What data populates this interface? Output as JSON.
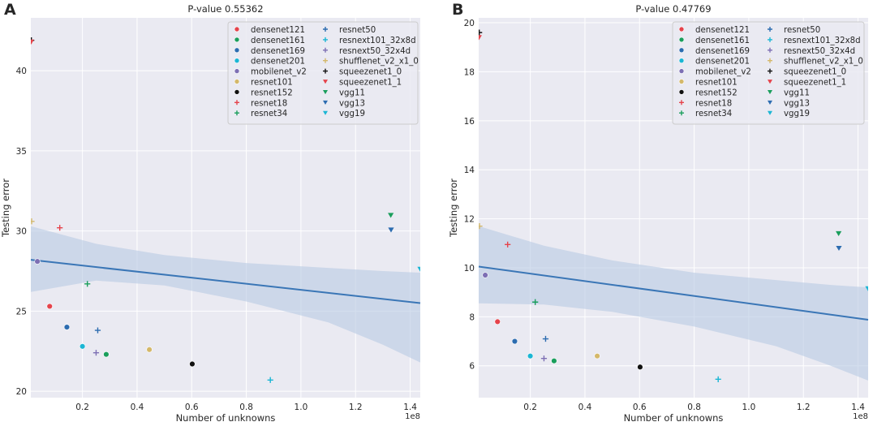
{
  "chart_data": [
    {
      "panel_label": "A",
      "type": "scatter",
      "title": "P-value  0.55362",
      "xlabel": "Number of unknowns",
      "ylabel": "Testing error",
      "x_scale_label": "1e8",
      "xlim": [
        0.011,
        1.437
      ],
      "ylim": [
        19.6,
        43.3
      ],
      "xticks": [
        0.2,
        0.4,
        0.6,
        0.8,
        1.0,
        1.2,
        1.4
      ],
      "xtick_labels": [
        "0.2",
        "0.4",
        "0.6",
        "0.8",
        "1.0",
        "1.2",
        "1.4"
      ],
      "yticks": [
        20,
        25,
        30,
        35,
        40
      ],
      "ytick_labels": [
        "20",
        "25",
        "30",
        "35",
        "40"
      ],
      "grid": true,
      "legend_position": "top-right",
      "regression": {
        "x": [
          0.011,
          1.437
        ],
        "y": [
          28.2,
          25.5
        ]
      },
      "ci_upper": [
        [
          0.011,
          30.3
        ],
        [
          0.25,
          29.2
        ],
        [
          0.5,
          28.5
        ],
        [
          0.8,
          28.0
        ],
        [
          1.1,
          27.7
        ],
        [
          1.3,
          27.5
        ],
        [
          1.437,
          27.4
        ]
      ],
      "ci_lower": [
        [
          0.011,
          26.2
        ],
        [
          0.25,
          26.9
        ],
        [
          0.5,
          26.6
        ],
        [
          0.8,
          25.6
        ],
        [
          1.1,
          24.3
        ],
        [
          1.3,
          22.9
        ],
        [
          1.437,
          21.8
        ]
      ],
      "series": [
        {
          "name": "densenet121",
          "marker": "o",
          "color": "#e5434b",
          "x": 0.08,
          "y": 25.3
        },
        {
          "name": "densenet161",
          "marker": "o",
          "color": "#1a9e5c",
          "x": 0.287,
          "y": 22.3
        },
        {
          "name": "densenet169",
          "marker": "o",
          "color": "#2c6cb0",
          "x": 0.143,
          "y": 24.0
        },
        {
          "name": "densenet201",
          "marker": "o",
          "color": "#1bb6d4",
          "x": 0.2,
          "y": 22.8
        },
        {
          "name": "mobilenet_v2",
          "marker": "o",
          "color": "#7d6fb4",
          "x": 0.035,
          "y": 28.1
        },
        {
          "name": "resnet101",
          "marker": "o",
          "color": "#d4b86a",
          "x": 0.445,
          "y": 22.6
        },
        {
          "name": "resnet152",
          "marker": "o",
          "color": "#111111",
          "x": 0.602,
          "y": 21.7
        },
        {
          "name": "resnet18",
          "marker": "+",
          "color": "#e5434b",
          "x": 0.117,
          "y": 30.2
        },
        {
          "name": "resnet34",
          "marker": "+",
          "color": "#1a9e5c",
          "x": 0.218,
          "y": 26.7
        },
        {
          "name": "resnet50",
          "marker": "+",
          "color": "#2c6cb0",
          "x": 0.256,
          "y": 23.8
        },
        {
          "name": "resnext101_32x8d",
          "marker": "+",
          "color": "#1bb6d4",
          "x": 0.888,
          "y": 20.7
        },
        {
          "name": "resnext50_32x4d",
          "marker": "+",
          "color": "#7d6fb4",
          "x": 0.25,
          "y": 22.4
        },
        {
          "name": "shufflenet_v2_x1_0",
          "marker": "+",
          "color": "#d4b86a",
          "x": 0.014,
          "y": 30.6
        },
        {
          "name": "squeezenet1_0",
          "marker": "+",
          "color": "#111111",
          "x": 0.013,
          "y": 41.9
        },
        {
          "name": "squeezenet1_1",
          "marker": "v",
          "color": "#e5434b",
          "x": 0.012,
          "y": 41.8
        },
        {
          "name": "vgg11",
          "marker": "v",
          "color": "#1a9e5c",
          "x": 1.329,
          "y": 30.98
        },
        {
          "name": "vgg13",
          "marker": "v",
          "color": "#2c6cb0",
          "x": 1.33,
          "y": 30.07
        },
        {
          "name": "vgg19",
          "marker": "v",
          "color": "#1bb6d4",
          "x": 1.437,
          "y": 27.62
        }
      ]
    },
    {
      "panel_label": "B",
      "type": "scatter",
      "title": "P-value  0.47769",
      "xlabel": "Number of unknowns",
      "ylabel": "Testing error",
      "x_scale_label": "1e8",
      "xlim": [
        0.011,
        1.437
      ],
      "ylim": [
        4.7,
        20.2
      ],
      "xticks": [
        0.2,
        0.4,
        0.6,
        0.8,
        1.0,
        1.2,
        1.4
      ],
      "xtick_labels": [
        "0.2",
        "0.4",
        "0.6",
        "0.8",
        "1.0",
        "1.2",
        "1.4"
      ],
      "yticks": [
        6,
        8,
        10,
        12,
        14,
        16,
        18,
        20
      ],
      "ytick_labels": [
        "6",
        "8",
        "10",
        "12",
        "14",
        "16",
        "18",
        "20"
      ],
      "grid": true,
      "legend_position": "top-right",
      "regression": {
        "x": [
          0.011,
          1.437
        ],
        "y": [
          10.05,
          7.88
        ]
      },
      "ci_upper": [
        [
          0.011,
          11.7
        ],
        [
          0.25,
          10.9
        ],
        [
          0.5,
          10.3
        ],
        [
          0.8,
          9.8
        ],
        [
          1.1,
          9.5
        ],
        [
          1.3,
          9.3
        ],
        [
          1.437,
          9.2
        ]
      ],
      "ci_lower": [
        [
          0.011,
          8.55
        ],
        [
          0.25,
          8.5
        ],
        [
          0.5,
          8.2
        ],
        [
          0.8,
          7.6
        ],
        [
          1.1,
          6.8
        ],
        [
          1.3,
          6.0
        ],
        [
          1.437,
          5.4
        ]
      ],
      "series": [
        {
          "name": "densenet121",
          "marker": "o",
          "color": "#e5434b",
          "x": 0.08,
          "y": 7.8
        },
        {
          "name": "densenet161",
          "marker": "o",
          "color": "#1a9e5c",
          "x": 0.287,
          "y": 6.2
        },
        {
          "name": "densenet169",
          "marker": "o",
          "color": "#2c6cb0",
          "x": 0.143,
          "y": 7.0
        },
        {
          "name": "densenet201",
          "marker": "o",
          "color": "#1bb6d4",
          "x": 0.2,
          "y": 6.4
        },
        {
          "name": "mobilenet_v2",
          "marker": "o",
          "color": "#7d6fb4",
          "x": 0.035,
          "y": 9.7
        },
        {
          "name": "resnet101",
          "marker": "o",
          "color": "#d4b86a",
          "x": 0.445,
          "y": 6.4
        },
        {
          "name": "resnet152",
          "marker": "o",
          "color": "#111111",
          "x": 0.602,
          "y": 5.95
        },
        {
          "name": "resnet18",
          "marker": "+",
          "color": "#e5434b",
          "x": 0.117,
          "y": 10.95
        },
        {
          "name": "resnet34",
          "marker": "+",
          "color": "#1a9e5c",
          "x": 0.218,
          "y": 8.6
        },
        {
          "name": "resnet50",
          "marker": "+",
          "color": "#2c6cb0",
          "x": 0.256,
          "y": 7.1
        },
        {
          "name": "resnext101_32x8d",
          "marker": "+",
          "color": "#1bb6d4",
          "x": 0.888,
          "y": 5.45
        },
        {
          "name": "resnext50_32x4d",
          "marker": "+",
          "color": "#7d6fb4",
          "x": 0.25,
          "y": 6.3
        },
        {
          "name": "shufflenet_v2_x1_0",
          "marker": "+",
          "color": "#d4b86a",
          "x": 0.014,
          "y": 11.7
        },
        {
          "name": "squeezenet1_0",
          "marker": "+",
          "color": "#111111",
          "x": 0.013,
          "y": 19.6
        },
        {
          "name": "squeezenet1_1",
          "marker": "v",
          "color": "#e5434b",
          "x": 0.012,
          "y": 19.4
        },
        {
          "name": "vgg11",
          "marker": "v",
          "color": "#1a9e5c",
          "x": 1.329,
          "y": 11.4
        },
        {
          "name": "vgg13",
          "marker": "v",
          "color": "#2c6cb0",
          "x": 1.33,
          "y": 10.8
        },
        {
          "name": "vgg19",
          "marker": "v",
          "color": "#1bb6d4",
          "x": 1.437,
          "y": 9.15
        }
      ]
    }
  ]
}
